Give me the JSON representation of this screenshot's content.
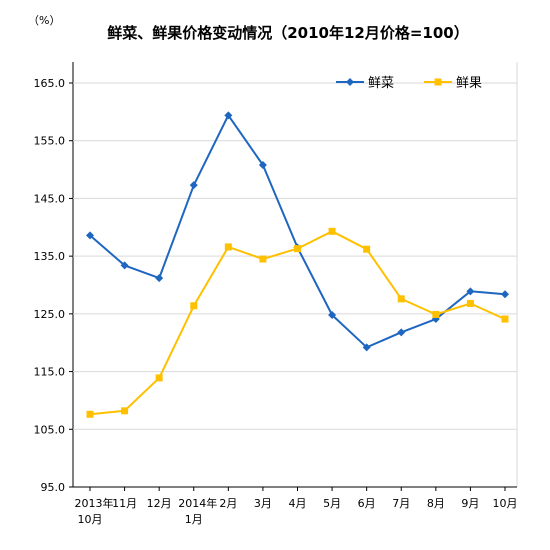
{
  "chart_data": {
    "type": "line",
    "title": "鲜菜、鲜果价格变动情况（2010年12月价格=100）",
    "unit_label": "（%）",
    "categories": [
      [
        "2013年",
        "10月"
      ],
      [
        "11月"
      ],
      [
        "12月"
      ],
      [
        "2014年",
        "1月"
      ],
      [
        "2月"
      ],
      [
        "3月"
      ],
      [
        "4月"
      ],
      [
        "5月"
      ],
      [
        "6月"
      ],
      [
        "7月"
      ],
      [
        "8月"
      ],
      [
        "9月"
      ],
      [
        "10月"
      ]
    ],
    "ylim": [
      95.0,
      165.0
    ],
    "yticks": [
      "95.0",
      "105.0",
      "115.0",
      "125.0",
      "135.0",
      "145.0",
      "155.0",
      "165.0"
    ],
    "grid": "horizontal",
    "legend_position": "top-right",
    "series": [
      {
        "name": "鲜菜",
        "color": "#1F66C1",
        "marker": "diamond",
        "values": [
          138.6,
          133.4,
          131.2,
          147.3,
          159.4,
          150.8,
          136.5,
          124.8,
          119.2,
          121.8,
          124.1,
          128.9,
          128.4
        ]
      },
      {
        "name": "鲜果",
        "color": "#FFC000",
        "marker": "square",
        "values": [
          107.6,
          108.2,
          113.9,
          126.4,
          136.6,
          134.5,
          136.3,
          139.3,
          136.2,
          127.6,
          124.9,
          126.8,
          124.1
        ]
      }
    ]
  }
}
